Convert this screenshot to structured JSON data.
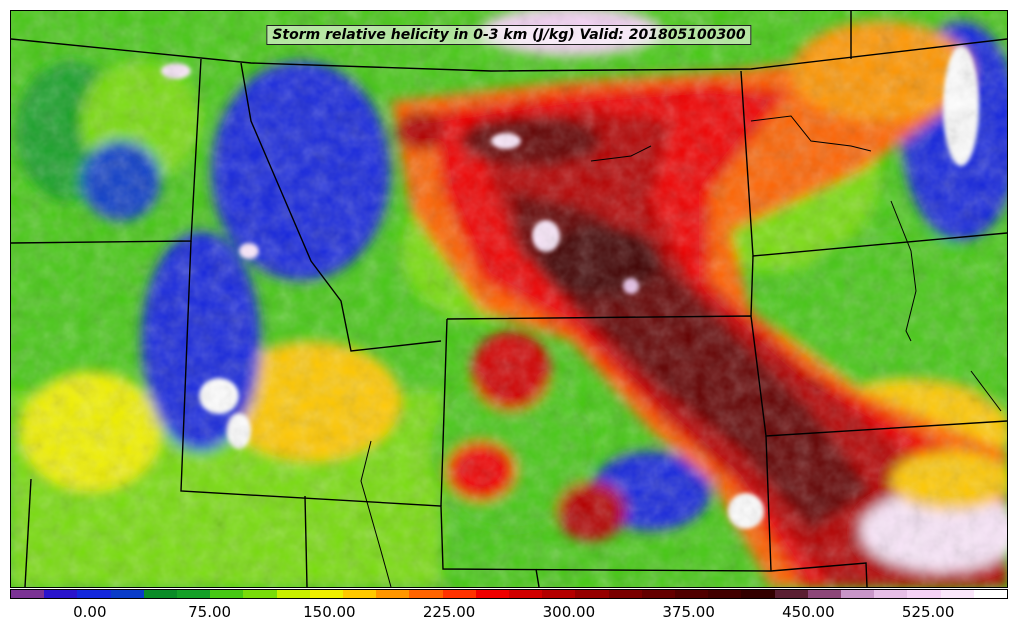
{
  "title": "Storm relative helicity in 0-3 km (J/kg) Valid: 201805100300",
  "colorbar": {
    "colors": [
      "#7b3294",
      "#2a14cc",
      "#1428dc",
      "#0a3cc8",
      "#0a8c28",
      "#14a028",
      "#46c814",
      "#78dc0a",
      "#c8f000",
      "#f0f000",
      "#ffc800",
      "#ff9600",
      "#ff6400",
      "#ff3200",
      "#f00000",
      "#d20000",
      "#b40000",
      "#960000",
      "#7a0000",
      "#640000",
      "#500000",
      "#410000",
      "#320000",
      "#5a1e32",
      "#8c4678",
      "#c896c8",
      "#e6bee6",
      "#f5d2f5",
      "#fae6fa",
      "#ffffff"
    ],
    "ticks": [
      {
        "value": 0,
        "label": "0.00"
      },
      {
        "value": 75,
        "label": "75.00"
      },
      {
        "value": 150,
        "label": "150.00"
      },
      {
        "value": 225,
        "label": "225.00"
      },
      {
        "value": 300,
        "label": "300.00"
      },
      {
        "value": 375,
        "label": "375.00"
      },
      {
        "value": 450,
        "label": "450.00"
      },
      {
        "value": 525,
        "label": "525.00"
      }
    ],
    "min": -50,
    "max": 575
  },
  "map": {
    "field": "storm-relative-helicity",
    "valid_time": "201805100300",
    "boundary_color": "#000000"
  }
}
